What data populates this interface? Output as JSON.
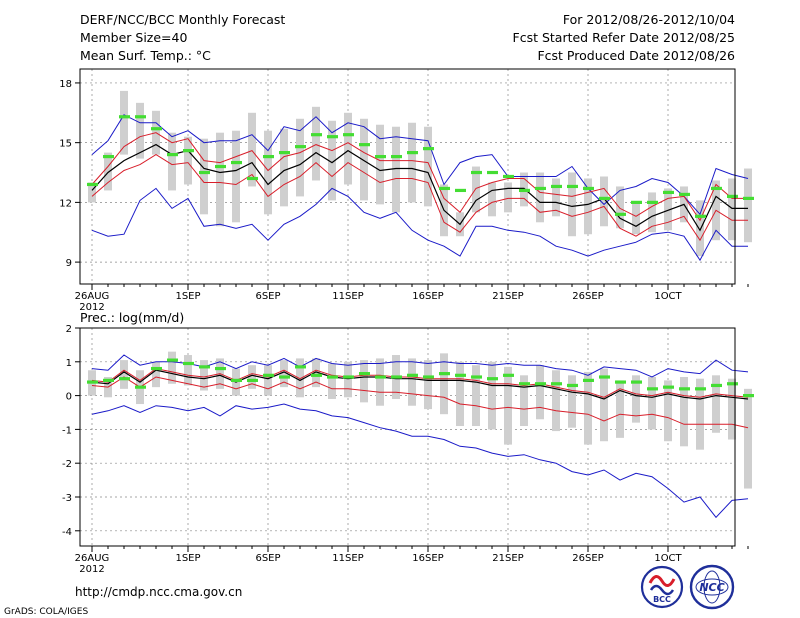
{
  "header": {
    "title": "DERF/NCC/BCC Monthly Forecast",
    "member_size": "Member Size=40",
    "variable": "Mean Surf. Temp.: °C",
    "period": "For 2012/08/26-2012/10/04",
    "start_date": "Fcst Started Refer Date 2012/08/25",
    "produced_date": "Fcst Produced Date 2012/08/26"
  },
  "footer": {
    "url": "http://cmdp.ncc.cma.gov.cn",
    "credit": "GrADS: COLA/IGES",
    "logo_bcc": "BCC",
    "logo_ncc": "NCC"
  },
  "colors": {
    "box": "#cfcfcf",
    "median": "#000000",
    "inner_band": "#d81e2a",
    "outer_band": "#1a1ac8",
    "clim": "#44dd33"
  },
  "chart_data": [
    {
      "type": "line",
      "title": "Mean Surf. Temp.: °C",
      "x_labels": [
        "26AUG",
        "1SEP",
        "6SEP",
        "11SEP",
        "16SEP",
        "21SEP",
        "26SEP",
        "1OCT"
      ],
      "x_label_days": [
        0,
        6,
        11,
        16,
        21,
        26,
        31,
        36
      ],
      "x_year": "2012",
      "ylim": [
        7.9,
        18.7
      ],
      "yticks": [
        9,
        12,
        15,
        18
      ],
      "series": [
        {
          "name": "median",
          "values": [
            12.6,
            13.5,
            14.1,
            14.5,
            14.9,
            14.4,
            14.6,
            13.7,
            13.5,
            13.6,
            14.0,
            12.9,
            13.6,
            13.9,
            14.5,
            14.0,
            14.6,
            14.1,
            13.6,
            13.7,
            13.7,
            13.5,
            11.6,
            10.9,
            12.1,
            12.6,
            12.7,
            12.7,
            12.0,
            12.0,
            11.8,
            11.9,
            12.2,
            11.2,
            10.8,
            11.3,
            11.6,
            11.9,
            10.6,
            12.3,
            11.7,
            11.7
          ]
        },
        {
          "name": "upper_inner",
          "values": [
            12.9,
            13.8,
            14.8,
            15.3,
            15.5,
            15.0,
            15.2,
            14.1,
            14.0,
            14.3,
            14.6,
            13.6,
            14.3,
            14.5,
            14.9,
            14.6,
            15.0,
            14.5,
            14.1,
            14.1,
            14.1,
            14.0,
            12.2,
            11.5,
            12.7,
            13.0,
            13.2,
            13.2,
            12.5,
            12.4,
            12.3,
            12.5,
            12.7,
            11.7,
            11.3,
            11.8,
            12.2,
            12.3,
            11.1,
            12.9,
            12.2,
            12.2
          ]
        },
        {
          "name": "lower_inner",
          "values": [
            12.3,
            13.0,
            13.6,
            13.9,
            14.4,
            13.9,
            14.0,
            13.0,
            13.0,
            12.9,
            13.4,
            12.3,
            12.9,
            13.3,
            14.0,
            13.3,
            14.0,
            13.5,
            13.0,
            13.2,
            13.2,
            13.0,
            11.0,
            10.5,
            11.5,
            12.0,
            12.2,
            12.2,
            11.5,
            11.6,
            11.3,
            11.5,
            11.8,
            10.7,
            10.3,
            10.8,
            11.0,
            11.3,
            10.1,
            11.6,
            11.1,
            11.1
          ]
        },
        {
          "name": "upper_outer",
          "values": [
            14.4,
            15.1,
            16.4,
            16.0,
            16.0,
            15.3,
            15.6,
            15.0,
            15.1,
            15.1,
            15.4,
            14.6,
            15.8,
            15.6,
            16.3,
            15.5,
            16.0,
            15.8,
            15.2,
            15.3,
            15.2,
            15.1,
            12.9,
            14.0,
            14.3,
            14.4,
            13.3,
            13.3,
            13.3,
            13.3,
            13.8,
            12.7,
            11.9,
            12.6,
            12.8,
            13.2,
            13.0,
            12.3,
            11.4,
            13.7,
            13.4,
            13.2
          ]
        },
        {
          "name": "lower_outer",
          "values": [
            10.6,
            10.3,
            10.4,
            12.1,
            12.7,
            11.7,
            12.2,
            10.8,
            10.9,
            10.7,
            10.9,
            10.1,
            10.9,
            11.3,
            11.9,
            12.7,
            12.3,
            11.5,
            11.2,
            11.5,
            10.6,
            10.1,
            9.8,
            9.3,
            10.8,
            10.8,
            10.6,
            10.5,
            10.3,
            9.8,
            9.6,
            9.3,
            9.6,
            9.8,
            10.0,
            10.4,
            10.5,
            10.3,
            9.1,
            10.6,
            9.8,
            9.8
          ]
        },
        {
          "name": "clim",
          "values": [
            12.9,
            14.3,
            16.3,
            16.3,
            15.7,
            14.4,
            14.6,
            13.5,
            13.8,
            14.0,
            13.2,
            14.3,
            14.5,
            14.8,
            15.4,
            15.3,
            15.4,
            14.9,
            14.3,
            14.3,
            14.5,
            14.7,
            12.7,
            12.6,
            13.5,
            13.5,
            13.3,
            12.6,
            12.7,
            12.8,
            12.8,
            12.7,
            12.2,
            11.4,
            12.0,
            12.0,
            12.5,
            12.4,
            11.3,
            12.7,
            12.3,
            12.2
          ]
        },
        {
          "name": "box_high",
          "values": [
            13.0,
            14.5,
            17.6,
            17.0,
            16.6,
            15.5,
            15.3,
            15.2,
            15.5,
            15.6,
            16.5,
            15.6,
            15.7,
            16.2,
            16.8,
            16.1,
            16.5,
            16.2,
            15.9,
            15.8,
            16.0,
            15.8,
            12.9,
            11.5,
            13.8,
            13.0,
            13.0,
            13.5,
            13.5,
            13.2,
            13.5,
            13.2,
            13.3,
            12.8,
            12.0,
            12.5,
            12.7,
            12.8,
            12.1,
            13.1,
            13.2,
            13.7
          ]
        },
        {
          "name": "box_low",
          "values": [
            12.0,
            12.6,
            14.4,
            14.2,
            14.4,
            12.6,
            12.9,
            11.4,
            10.8,
            11.0,
            12.8,
            11.4,
            11.8,
            12.3,
            13.1,
            12.1,
            12.9,
            12.1,
            11.9,
            11.5,
            12.0,
            11.8,
            10.3,
            10.3,
            11.5,
            11.3,
            11.5,
            11.8,
            11.0,
            11.3,
            10.3,
            10.4,
            10.8,
            10.7,
            10.4,
            10.5,
            10.6,
            11.0,
            9.3,
            10.1,
            10.1,
            10.0
          ]
        }
      ]
    },
    {
      "type": "line",
      "title": "Prec.: log(mm/d)",
      "x_labels": [
        "26AUG",
        "1SEP",
        "6SEP",
        "11SEP",
        "16SEP",
        "21SEP",
        "26SEP",
        "1OCT"
      ],
      "x_label_days": [
        0,
        6,
        11,
        16,
        21,
        26,
        31,
        36
      ],
      "x_year": "2012",
      "ylim": [
        -4.45,
        2.0
      ],
      "yticks": [
        -4,
        -3,
        -2,
        -1,
        0,
        1,
        2
      ],
      "series": [
        {
          "name": "median",
          "values": [
            0.4,
            0.35,
            0.7,
            0.4,
            0.75,
            0.65,
            0.55,
            0.5,
            0.6,
            0.4,
            0.6,
            0.5,
            0.7,
            0.45,
            0.7,
            0.55,
            0.5,
            0.55,
            0.55,
            0.5,
            0.5,
            0.45,
            0.45,
            0.45,
            0.4,
            0.3,
            0.3,
            0.25,
            0.3,
            0.2,
            0.1,
            0.05,
            -0.1,
            0.15,
            0.0,
            -0.05,
            0.05,
            -0.05,
            -0.1,
            0.0,
            -0.05,
            -0.1
          ]
        },
        {
          "name": "upper_inner",
          "values": [
            0.45,
            0.4,
            0.75,
            0.45,
            0.8,
            0.7,
            0.6,
            0.55,
            0.65,
            0.45,
            0.65,
            0.55,
            0.75,
            0.5,
            0.75,
            0.6,
            0.55,
            0.6,
            0.6,
            0.55,
            0.55,
            0.5,
            0.5,
            0.5,
            0.45,
            0.35,
            0.35,
            0.3,
            0.35,
            0.25,
            0.15,
            0.1,
            -0.05,
            0.2,
            0.05,
            0.0,
            0.1,
            0.0,
            -0.05,
            0.05,
            0.0,
            -0.05
          ]
        },
        {
          "name": "lower_inner",
          "values": [
            0.3,
            0.25,
            0.55,
            0.25,
            0.55,
            0.45,
            0.35,
            0.25,
            0.35,
            0.2,
            0.35,
            0.2,
            0.4,
            0.2,
            0.4,
            0.2,
            0.2,
            0.15,
            0.1,
            0.1,
            0.05,
            0.0,
            -0.05,
            -0.25,
            -0.3,
            -0.4,
            -0.35,
            -0.4,
            -0.35,
            -0.45,
            -0.5,
            -0.55,
            -0.75,
            -0.55,
            -0.6,
            -0.55,
            -0.65,
            -0.85,
            -0.85,
            -0.85,
            -0.85,
            -0.95
          ]
        },
        {
          "name": "upper_outer",
          "values": [
            0.8,
            0.75,
            1.2,
            0.9,
            1.0,
            1.0,
            0.95,
            0.85,
            1.0,
            0.8,
            1.0,
            0.9,
            1.1,
            0.85,
            1.1,
            0.95,
            0.9,
            0.95,
            0.95,
            1.0,
            1.0,
            0.95,
            1.0,
            0.95,
            0.95,
            0.9,
            0.95,
            0.9,
            0.9,
            0.8,
            0.75,
            0.6,
            0.85,
            0.8,
            0.75,
            0.55,
            0.8,
            0.7,
            0.65,
            1.05,
            0.75,
            0.7
          ]
        },
        {
          "name": "lower_outer",
          "values": [
            -0.55,
            -0.45,
            -0.3,
            -0.5,
            -0.3,
            -0.35,
            -0.45,
            -0.35,
            -0.6,
            -0.3,
            -0.4,
            -0.35,
            -0.25,
            -0.4,
            -0.45,
            -0.6,
            -0.65,
            -0.8,
            -0.95,
            -1.05,
            -1.2,
            -1.2,
            -1.3,
            -1.5,
            -1.55,
            -1.7,
            -1.8,
            -1.75,
            -1.9,
            -2.0,
            -2.25,
            -2.35,
            -2.2,
            -2.5,
            -2.3,
            -2.4,
            -2.75,
            -3.15,
            -3.0,
            -3.6,
            -3.1,
            -3.05
          ]
        },
        {
          "name": "clim",
          "values": [
            0.4,
            0.45,
            0.5,
            0.25,
            0.8,
            1.05,
            0.95,
            0.85,
            0.8,
            0.45,
            0.45,
            0.6,
            0.55,
            0.85,
            0.6,
            0.55,
            0.55,
            0.65,
            0.55,
            0.55,
            0.6,
            0.55,
            0.65,
            0.6,
            0.55,
            0.5,
            0.6,
            0.35,
            0.35,
            0.35,
            0.3,
            0.45,
            0.55,
            0.4,
            0.4,
            0.2,
            0.25,
            0.2,
            0.2,
            0.3,
            0.35,
            0.0
          ]
        },
        {
          "name": "box_high",
          "values": [
            0.75,
            0.55,
            1.05,
            0.75,
            1.0,
            1.3,
            1.2,
            1.05,
            1.1,
            0.8,
            0.9,
            0.9,
            1.05,
            1.1,
            1.1,
            0.95,
            1.0,
            1.05,
            1.1,
            1.2,
            1.1,
            1.05,
            1.25,
            1.0,
            0.9,
            1.0,
            0.85,
            0.6,
            0.9,
            0.75,
            0.6,
            0.7,
            0.8,
            0.45,
            0.6,
            0.55,
            0.45,
            0.55,
            0.5,
            0.6,
            0.5,
            0.2
          ]
        },
        {
          "name": "box_low",
          "values": [
            0.0,
            -0.05,
            0.2,
            -0.25,
            0.25,
            0.35,
            0.3,
            0.15,
            0.2,
            0.0,
            0.2,
            0.0,
            0.25,
            -0.05,
            0.25,
            -0.1,
            -0.05,
            -0.2,
            -0.3,
            -0.1,
            -0.3,
            -0.4,
            -0.55,
            -0.9,
            -0.9,
            -1.0,
            -1.45,
            -0.9,
            -0.7,
            -1.05,
            -0.95,
            -1.45,
            -1.35,
            -1.25,
            -0.8,
            -1.0,
            -1.35,
            -1.5,
            -1.6,
            -1.1,
            -1.3,
            -2.75
          ]
        }
      ]
    }
  ]
}
